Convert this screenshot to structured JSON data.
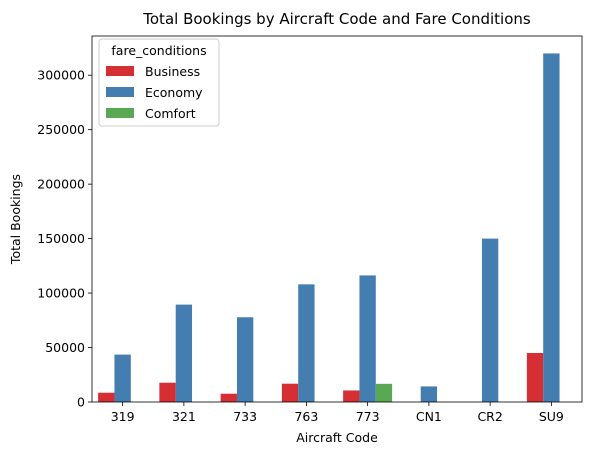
{
  "chart_data": {
    "type": "bar",
    "title": "Total Bookings by Aircraft Code and Fare Conditions",
    "xlabel": "Aircraft Code",
    "ylabel": "Total Bookings",
    "categories": [
      "319",
      "321",
      "733",
      "763",
      "773",
      "CN1",
      "CR2",
      "SU9"
    ],
    "ylim": [
      0,
      336000
    ],
    "yticks": [
      0,
      50000,
      100000,
      150000,
      200000,
      250000,
      300000
    ],
    "ytick_labels": [
      "0",
      "50000",
      "100000",
      "150000",
      "200000",
      "250000",
      "300000"
    ],
    "grid": false,
    "legend": {
      "title": "fare_conditions",
      "placement": "top-left"
    },
    "series": [
      {
        "name": "Business",
        "color": "#d62f33",
        "values": [
          8500,
          17700,
          7600,
          16800,
          10600,
          null,
          null,
          45000
        ]
      },
      {
        "name": "Economy",
        "color": "#447daf",
        "values": [
          43500,
          89400,
          77800,
          108000,
          116200,
          14300,
          150000,
          320000
        ]
      },
      {
        "name": "Comfort",
        "color": "#5aa754",
        "values": [
          null,
          null,
          null,
          null,
          16700,
          null,
          null,
          null
        ]
      }
    ]
  }
}
